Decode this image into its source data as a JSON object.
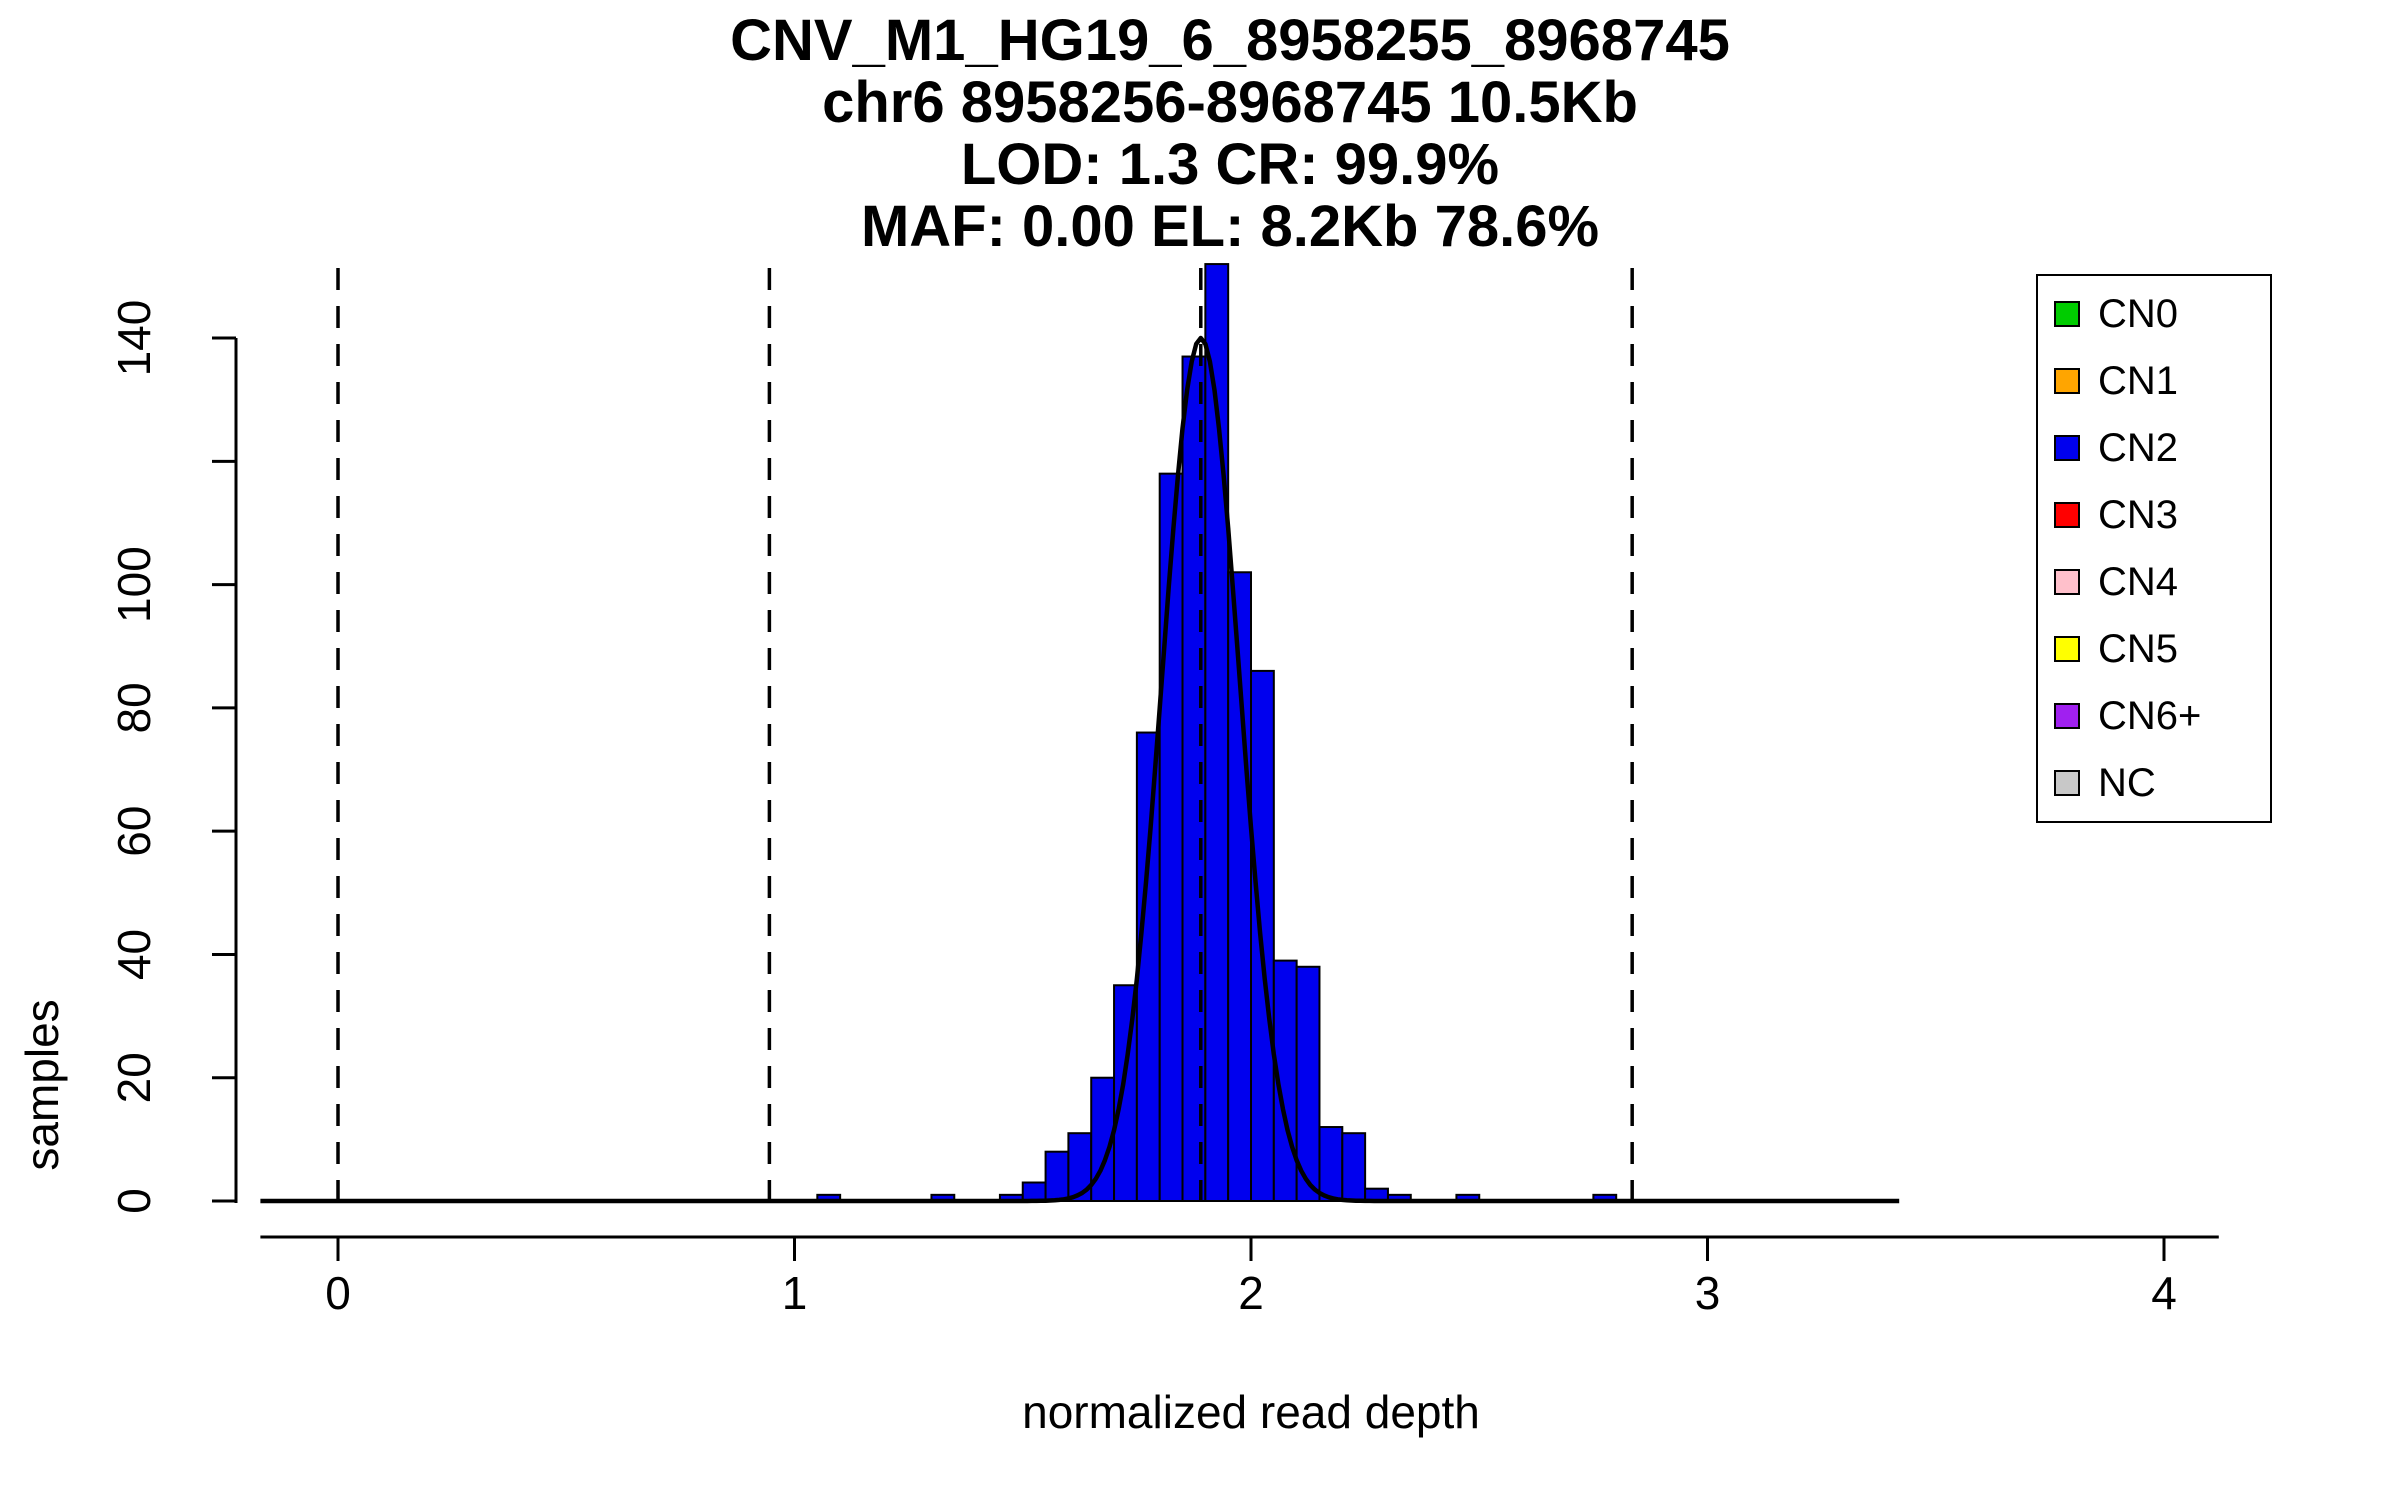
{
  "chart_data": {
    "type": "bar",
    "title": "CNV_M1_HG19_6_8958255_8968745",
    "subtitle_lines": [
      "chr6 8958256-8968745 10.5Kb",
      "LOD: 1.3 CR: 99.9%",
      "MAF: 0.00 EL: 8.2Kb 78.6%"
    ],
    "xlabel": "normalized read depth",
    "ylabel": "samples",
    "xlim": [
      -0.17,
      4.12
    ],
    "ylim": [
      0,
      152
    ],
    "x_ticks": [
      0,
      1,
      2,
      3,
      4
    ],
    "y_ticks": [
      0,
      20,
      40,
      60,
      80,
      100,
      120,
      140
    ],
    "y_tick_labels": [
      "0",
      "20",
      "40",
      "60",
      "80",
      "100",
      "",
      "140"
    ],
    "grid": "off",
    "bin_width": 0.05,
    "bar_color": "#0000EE",
    "bar_edge_color": "#000000",
    "bars": [
      [
        1.05,
        1
      ],
      [
        1.3,
        1
      ],
      [
        1.45,
        1
      ],
      [
        1.5,
        3
      ],
      [
        1.55,
        8
      ],
      [
        1.6,
        11
      ],
      [
        1.65,
        20
      ],
      [
        1.7,
        35
      ],
      [
        1.75,
        76
      ],
      [
        1.8,
        118
      ],
      [
        1.85,
        137
      ],
      [
        1.9,
        152
      ],
      [
        1.95,
        102
      ],
      [
        2.0,
        86
      ],
      [
        2.05,
        39
      ],
      [
        2.1,
        38
      ],
      [
        2.15,
        12
      ],
      [
        2.2,
        11
      ],
      [
        2.25,
        2
      ],
      [
        2.3,
        1
      ],
      [
        2.45,
        1
      ],
      [
        2.75,
        1
      ]
    ],
    "curve": {
      "type": "gaussian",
      "mean": 1.89,
      "sd": 0.085,
      "amplitude": 140,
      "color": "#000000"
    },
    "dashed_lines_x": [
      0,
      0.945,
      1.89,
      2.835
    ],
    "legend": {
      "position": "top-right",
      "entries": [
        {
          "label": "CN0",
          "color": "#00CC00"
        },
        {
          "label": "CN1",
          "color": "#FFA500"
        },
        {
          "label": "CN2",
          "color": "#0000EE"
        },
        {
          "label": "CN3",
          "color": "#FF0000"
        },
        {
          "label": "CN4",
          "color": "#FFC0CB"
        },
        {
          "label": "CN5",
          "color": "#FFFF00"
        },
        {
          "label": "CN6+",
          "color": "#A020F0"
        },
        {
          "label": "NC",
          "color": "#C8C8C8"
        }
      ]
    }
  }
}
